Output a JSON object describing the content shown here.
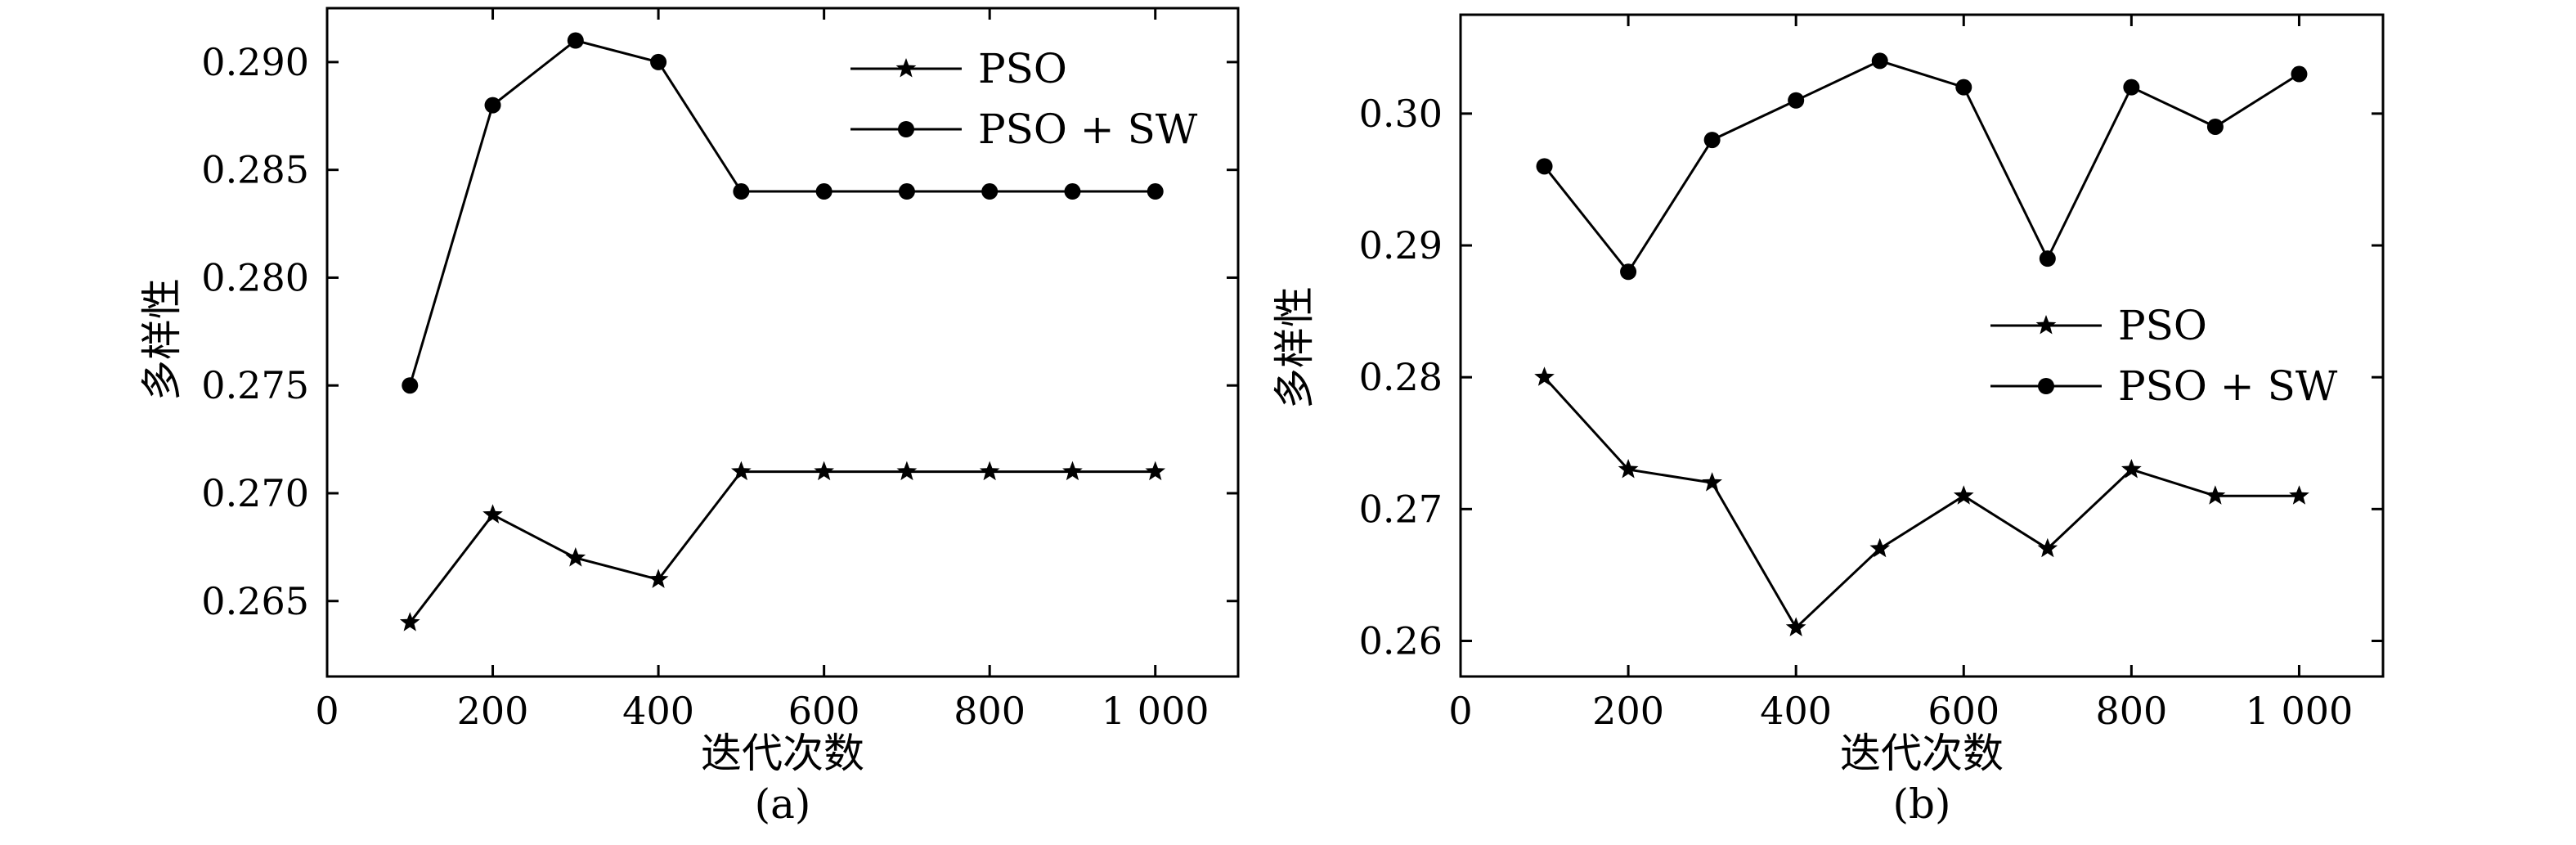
{
  "chart_data": [
    {
      "type": "line",
      "caption": "(a)",
      "xlabel": "迭代次数",
      "ylabel": "多样性",
      "xlim": [
        0,
        1100
      ],
      "ylim": [
        0.2615,
        0.2925
      ],
      "xticks": [
        0,
        200,
        400,
        600,
        800,
        1000
      ],
      "xtick_labels": [
        "0",
        "200",
        "400",
        "600",
        "800",
        "1 000"
      ],
      "yticks": [
        0.265,
        0.27,
        0.275,
        0.28,
        0.285,
        0.29
      ],
      "ytick_labels": [
        "0.265",
        "0.270",
        "0.275",
        "0.280",
        "0.285",
        "0.290"
      ],
      "legend_position": "top-right",
      "x": [
        100,
        200,
        300,
        400,
        500,
        600,
        700,
        800,
        900,
        1000
      ],
      "series": [
        {
          "name": "PSO",
          "marker": "star",
          "values": [
            0.264,
            0.269,
            0.267,
            0.266,
            0.271,
            0.271,
            0.271,
            0.271,
            0.271,
            0.271
          ]
        },
        {
          "name": "PSO + SW",
          "marker": "circle",
          "values": [
            0.275,
            0.288,
            0.291,
            0.29,
            0.284,
            0.284,
            0.284,
            0.284,
            0.284,
            0.284
          ]
        }
      ]
    },
    {
      "type": "line",
      "caption": "(b)",
      "xlabel": "迭代次数",
      "ylabel": "多样性",
      "xlim": [
        0,
        1100
      ],
      "ylim": [
        0.2573,
        0.3075
      ],
      "xticks": [
        0,
        200,
        400,
        600,
        800,
        1000
      ],
      "xtick_labels": [
        "0",
        "200",
        "400",
        "600",
        "800",
        "1 000"
      ],
      "yticks": [
        0.26,
        0.27,
        0.28,
        0.29,
        0.3
      ],
      "ytick_labels": [
        "0.26",
        "0.27",
        "0.28",
        "0.29",
        "0.30"
      ],
      "legend_position": "center-right",
      "x": [
        100,
        200,
        300,
        400,
        500,
        600,
        700,
        800,
        900,
        1000
      ],
      "series": [
        {
          "name": "PSO",
          "marker": "star",
          "values": [
            0.28,
            0.273,
            0.272,
            0.261,
            0.267,
            0.271,
            0.267,
            0.273,
            0.271,
            0.271
          ]
        },
        {
          "name": "PSO + SW",
          "marker": "circle",
          "values": [
            0.296,
            0.288,
            0.298,
            0.301,
            0.304,
            0.302,
            0.289,
            0.302,
            0.299,
            0.303
          ]
        }
      ]
    }
  ]
}
